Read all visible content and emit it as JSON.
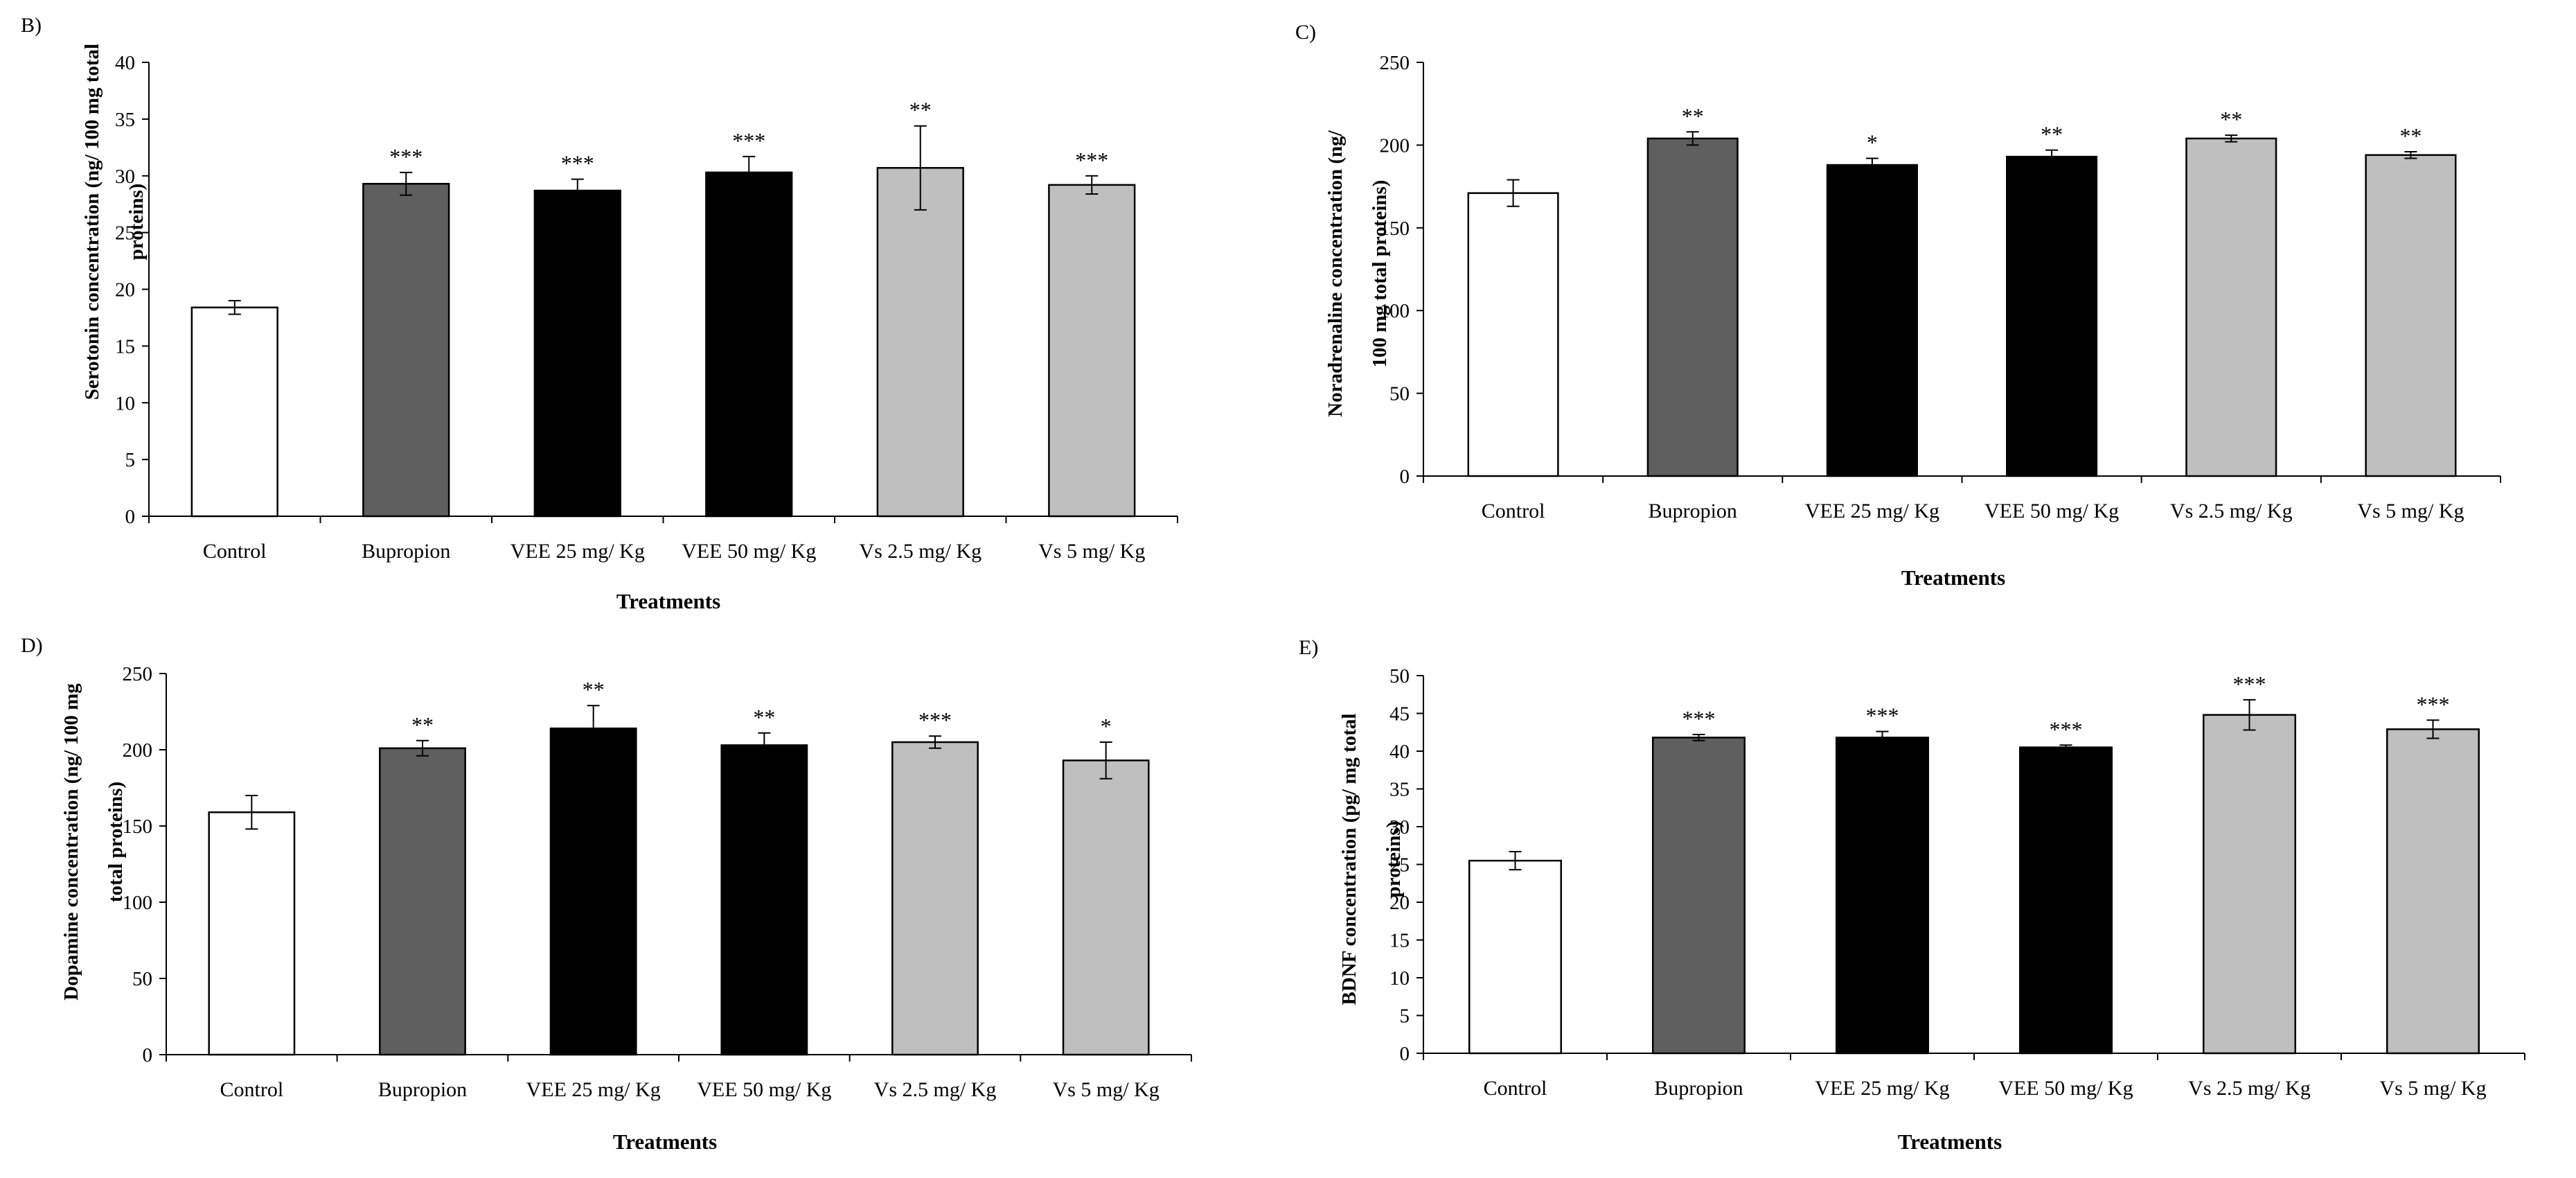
{
  "chart_data": [
    {
      "panel": "B)",
      "type": "bar",
      "categories": [
        "Control",
        "Bupropion",
        "VEE 25 mg/ Kg",
        "VEE 50 mg/ Kg",
        "Vs 2.5 mg/ Kg",
        "Vs 5 mg/ Kg"
      ],
      "values": [
        18.4,
        29.3,
        28.7,
        30.3,
        30.7,
        29.2
      ],
      "errors": [
        0.6,
        1.0,
        1.0,
        1.4,
        3.7,
        0.8
      ],
      "significance": [
        "",
        "***",
        "***",
        "***",
        "**",
        "***"
      ],
      "ylabel": "Serotonin concentration (ng/ 100 mg total proteins)",
      "xlabel": "Treatments",
      "ylim": [
        0,
        40
      ],
      "ytick_step": 5,
      "yticks": [
        "0",
        "5",
        "10",
        "15",
        "20",
        "25",
        "30",
        "35",
        "40"
      ]
    },
    {
      "panel": "C)",
      "type": "bar",
      "categories": [
        "Control",
        "Bupropion",
        "VEE 25 mg/ Kg",
        "VEE 50 mg/ Kg",
        "Vs 2.5 mg/ Kg",
        "Vs 5 mg/ Kg"
      ],
      "values": [
        171,
        204,
        188,
        193,
        204,
        194
      ],
      "errors": [
        8,
        4,
        4,
        4,
        2,
        2
      ],
      "significance": [
        "",
        "**",
        "*",
        "**",
        "**",
        "**"
      ],
      "ylabel": "Noradrenaline concentration (ng/ 100 mg total proteins)",
      "xlabel": "Treatments",
      "ylim": [
        0,
        250
      ],
      "ytick_step": 50,
      "yticks": [
        "0",
        "50",
        "100",
        "150",
        "200",
        "250"
      ]
    },
    {
      "panel": "D)",
      "type": "bar",
      "categories": [
        "Control",
        "Bupropion",
        "VEE 25 mg/ Kg",
        "VEE 50 mg/ Kg",
        "Vs 2.5 mg/ Kg",
        "Vs 5 mg/ Kg"
      ],
      "values": [
        159,
        201,
        214,
        203,
        205,
        193
      ],
      "errors": [
        11,
        5,
        15,
        8,
        4,
        12
      ],
      "significance": [
        "",
        "**",
        "**",
        "**",
        "***",
        "*"
      ],
      "ylabel": "Dopamine concentration (ng/ 100 mg total proteins)",
      "xlabel": "Treatments",
      "ylim": [
        0,
        250
      ],
      "ytick_step": 50,
      "yticks": [
        "0",
        "50",
        "100",
        "150",
        "200",
        "250"
      ]
    },
    {
      "panel": "E)",
      "type": "bar",
      "categories": [
        "Control",
        "Bupropion",
        "VEE 25 mg/ Kg",
        "VEE 50 mg/ Kg",
        "Vs 2.5 mg/ Kg",
        "Vs 5 mg/ Kg"
      ],
      "values": [
        25.5,
        41.8,
        41.8,
        40.5,
        44.8,
        42.9
      ],
      "errors": [
        1.2,
        0.4,
        0.8,
        0.3,
        2.0,
        1.2
      ],
      "significance": [
        "",
        "***",
        "***",
        "***",
        "***",
        "***"
      ],
      "ylabel": "BDNF concentration (pg/ mg total proteins)",
      "xlabel": "Treatments",
      "ylim": [
        0,
        50
      ],
      "ytick_step": 5,
      "yticks": [
        "0",
        "5",
        "10",
        "15",
        "20",
        "25",
        "30",
        "35",
        "40",
        "45",
        "50"
      ]
    }
  ],
  "ylabel_lines": [
    [
      "Serotonin concentration (ng/ 100 mg total",
      "proteins)"
    ],
    [
      "Noradrenaline concentration (ng/",
      "100 mg total proteins)"
    ],
    [
      "Dopamine concentration (ng/ 100 mg",
      "total proteins)"
    ],
    [
      "BDNF concentration (pg/ mg total",
      "proteins)"
    ]
  ],
  "colors": {
    "control": "#ffffff",
    "bupropion": "#5f5f5f",
    "vee": "#000000",
    "vs": "#bfbfbf",
    "axis": "#000000"
  }
}
